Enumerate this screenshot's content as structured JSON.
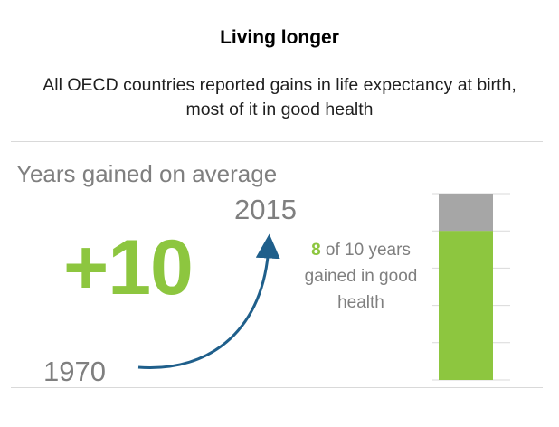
{
  "header": {
    "title": "Living longer",
    "subtitle": "All OECD countries reported gains in life expectancy at birth, most of it in good health"
  },
  "infographic": {
    "label": "Years gained on average",
    "gain": "+10",
    "start_year": "1970",
    "end_year": "2015",
    "healthy_years": "8",
    "healthy_note": "of 10 years gained in good health",
    "colors": {
      "green": "#8dc63f",
      "grey": "#a6a6a6",
      "arrow": "#1f5f8b",
      "text_grey": "#7f7f7f"
    }
  },
  "bar": {
    "total_years": 10,
    "healthy_years": 8
  }
}
